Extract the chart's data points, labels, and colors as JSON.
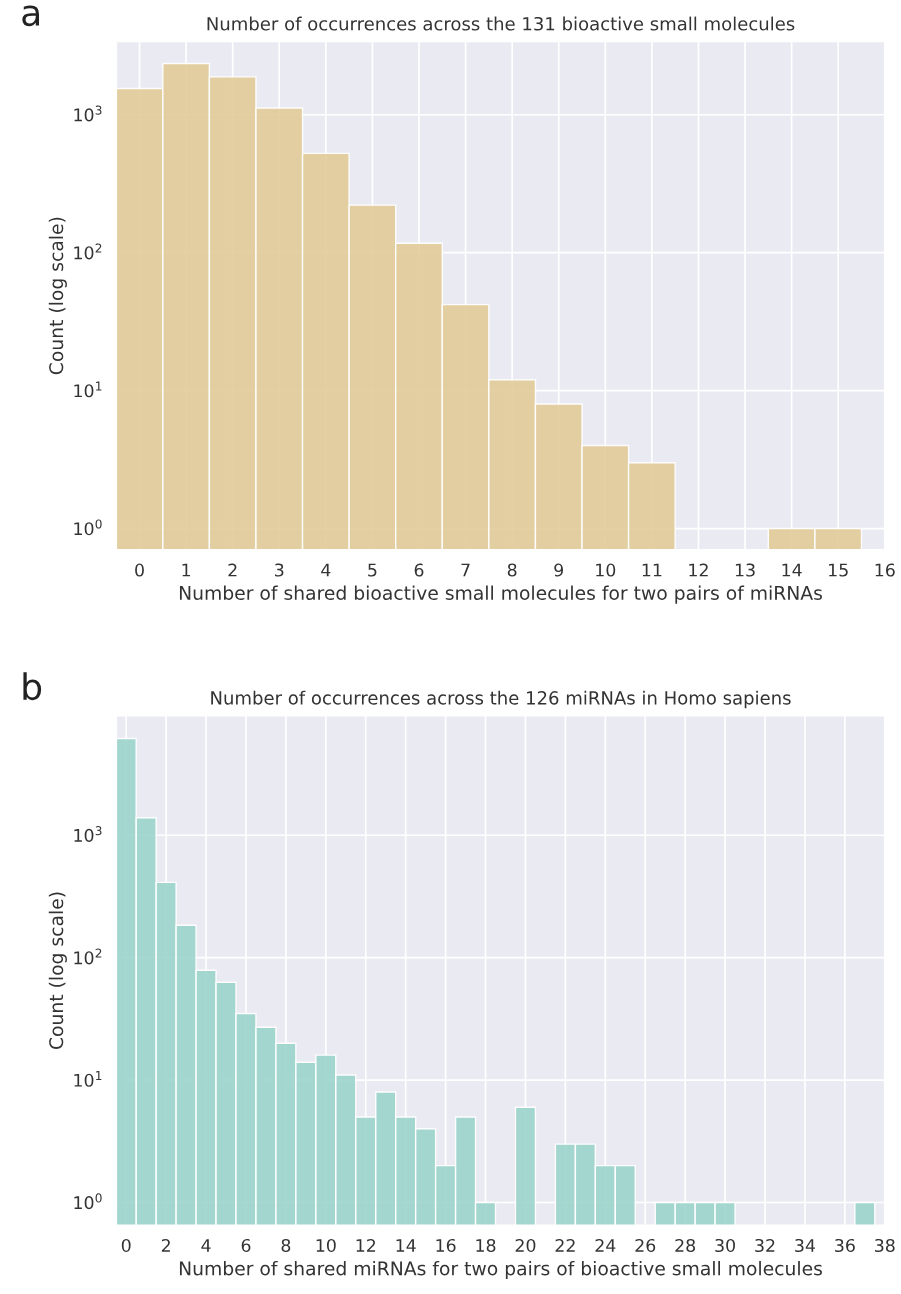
{
  "chart_data": [
    {
      "type": "histogram",
      "title": "Number of occurrences across the 131 bioactive small molecules",
      "xlabel": "Number of shared bioactive small molecules for two pairs of miRNAs",
      "ylabel": "Count (log scale)",
      "annotations": [
        "a"
      ],
      "bins": [
        -0.5,
        0.5,
        1.5,
        2.5,
        3.5,
        4.5,
        5.5,
        6.5,
        7.5,
        8.5,
        9.5,
        10.5,
        11.5,
        12.5,
        13.5,
        14.5,
        15.5
      ],
      "values": [
        1550,
        2350,
        1880,
        1120,
        525,
        221,
        117,
        42,
        12,
        8,
        4,
        3,
        null,
        null,
        1,
        1
      ],
      "color": "#e2cb98",
      "log": true,
      "grid": true,
      "xlim": [
        -0.5,
        16
      ],
      "xticks": [
        0,
        1,
        2,
        3,
        4,
        5,
        6,
        7,
        8,
        9,
        10,
        11,
        12,
        13,
        14,
        15,
        16
      ],
      "ylim": [
        0.7,
        3400
      ],
      "yticks": [
        {
          "value": 1,
          "label": "10$^{0}$"
        },
        {
          "value": 10,
          "label": "10$^{1}$"
        },
        {
          "value": 100,
          "label": "10$^{2}$"
        },
        {
          "value": 1000,
          "label": "10$^{3}$"
        }
      ]
    },
    {
      "type": "histogram",
      "title": "Number of occurrences across the 126 miRNAs in Homo sapiens",
      "xlabel": "Number of shared miRNAs for two pairs of bioactive small molecules",
      "ylabel": "Count (log scale)",
      "annotations": [
        "b"
      ],
      "bins": [
        -0.5,
        0.5,
        1.5,
        2.5,
        3.5,
        4.5,
        5.5,
        6.5,
        7.5,
        8.5,
        9.5,
        10.5,
        11.5,
        12.5,
        13.5,
        14.5,
        15.5,
        16.5,
        17.5,
        18.5,
        19.5,
        20.5,
        21.5,
        22.5,
        23.5,
        24.5,
        25.5,
        26.5,
        27.5,
        28.5,
        29.5,
        30.5,
        31.5,
        32.5,
        33.5,
        34.5,
        35.5,
        36.5,
        37.5
      ],
      "values": [
        6170,
        1390,
        412,
        184,
        79,
        63,
        35,
        27,
        20,
        14,
        16,
        11,
        5,
        8,
        5,
        4,
        2,
        5,
        1,
        null,
        6,
        null,
        3,
        3,
        2,
        2,
        null,
        1,
        1,
        1,
        1,
        null,
        null,
        null,
        null,
        null,
        null,
        1
      ],
      "color": "#9dd4cc",
      "log": true,
      "grid": true,
      "xlim": [
        -0.5,
        38
      ],
      "xticks": [
        0,
        2,
        4,
        6,
        8,
        10,
        12,
        14,
        16,
        18,
        20,
        22,
        24,
        26,
        28,
        30,
        32,
        34,
        36,
        38
      ],
      "ylim": [
        0.65,
        9500
      ],
      "yticks": [
        {
          "value": 1,
          "label": "10$^{0}$"
        },
        {
          "value": 10,
          "label": "10$^{1}$"
        },
        {
          "value": 100,
          "label": "10$^{2}$"
        },
        {
          "value": 1000,
          "label": "10$^{3}$"
        }
      ]
    }
  ]
}
